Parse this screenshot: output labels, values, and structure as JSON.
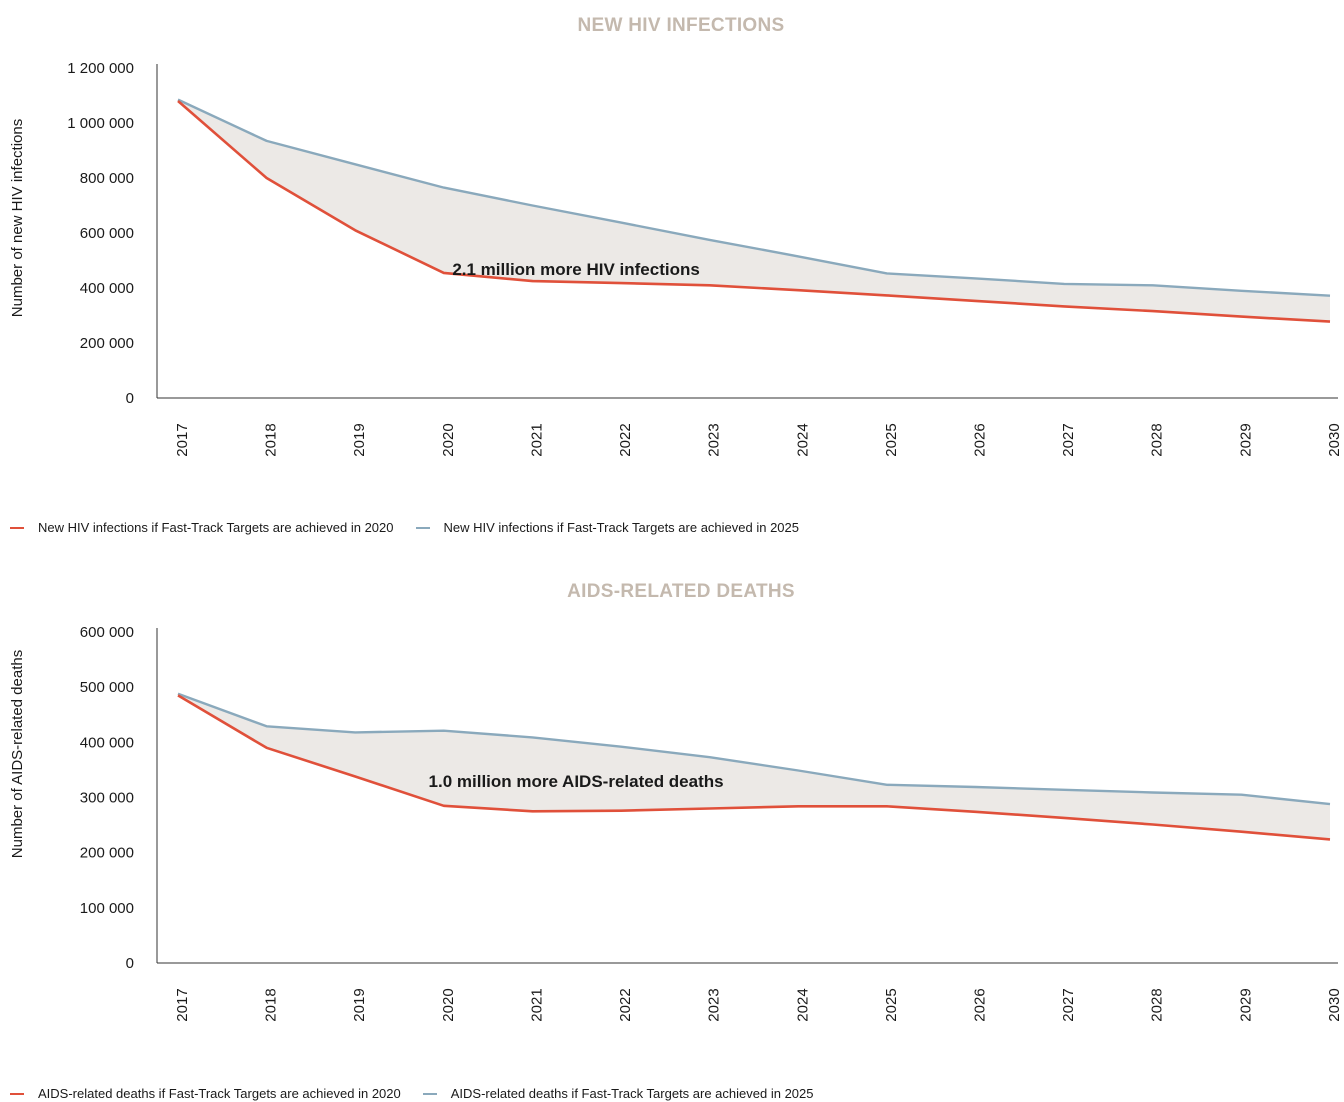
{
  "colors": {
    "series_2020": "#e0503a",
    "series_2025": "#8aa9bc",
    "gap_fill": "#ece9e6",
    "title": "#c4b9ae"
  },
  "chart_data": [
    {
      "type": "line",
      "title": "NEW HIV INFECTIONS",
      "ylabel": "Number of new HIV infections",
      "xlabel": "",
      "ylim": [
        0,
        1200000
      ],
      "yticks": [
        0,
        200000,
        400000,
        600000,
        800000,
        1000000,
        1200000
      ],
      "ytick_labels": [
        "0",
        "200 000",
        "400 000",
        "600 000",
        "800 000",
        "1 000 000",
        "1 200 000"
      ],
      "categories": [
        "2017",
        "2018",
        "2019",
        "2020",
        "2021",
        "2022",
        "2023",
        "2024",
        "2025",
        "2026",
        "2027",
        "2028",
        "2029",
        "2030"
      ],
      "series": [
        {
          "name": "New HIV infections if Fast-Track Targets are achieved in 2020",
          "values": [
            1080000,
            800000,
            610000,
            455000,
            425000,
            418000,
            410000,
            392000,
            373000,
            353000,
            333000,
            316000,
            296000,
            278000
          ]
        },
        {
          "name": "New HIV infections if Fast-Track Targets are achieved in 2025",
          "values": [
            1085000,
            935000,
            850000,
            765000,
            700000,
            638000,
            575000,
            515000,
            453000,
            435000,
            415000,
            410000,
            390000,
            372000
          ]
        }
      ],
      "annotation": {
        "text": "2.1 million more HIV infections",
        "x": "2022",
        "y": 470000
      },
      "grid": false,
      "legend_position": "bottom-left"
    },
    {
      "type": "line",
      "title": "AIDS-RELATED DEATHS",
      "ylabel": "Number of AIDS-related deaths",
      "xlabel": "",
      "ylim": [
        0,
        600000
      ],
      "yticks": [
        0,
        100000,
        200000,
        300000,
        400000,
        500000,
        600000
      ],
      "ytick_labels": [
        "0",
        "100 000",
        "200 000",
        "300 000",
        "400 000",
        "500 000",
        "600 000"
      ],
      "categories": [
        "2017",
        "2018",
        "2019",
        "2020",
        "2021",
        "2022",
        "2023",
        "2024",
        "2025",
        "2026",
        "2027",
        "2028",
        "2029",
        "2030"
      ],
      "series": [
        {
          "name": "AIDS-related deaths if Fast-Track Targets are achieved in 2020",
          "values": [
            485000,
            390000,
            338000,
            285000,
            275000,
            276000,
            280000,
            284000,
            284000,
            274000,
            263000,
            251000,
            238000,
            224000
          ]
        },
        {
          "name": "AIDS-related deaths if Fast-Track Targets are achieved in 2025",
          "values": [
            488000,
            429000,
            418000,
            421000,
            409000,
            392000,
            373000,
            349000,
            323000,
            319000,
            314000,
            309000,
            305000,
            288000
          ]
        }
      ],
      "annotation": {
        "text": "1.0 million more AIDS-related deaths",
        "x": "2022",
        "y": 330000
      },
      "grid": false,
      "legend_position": "bottom-left"
    }
  ]
}
